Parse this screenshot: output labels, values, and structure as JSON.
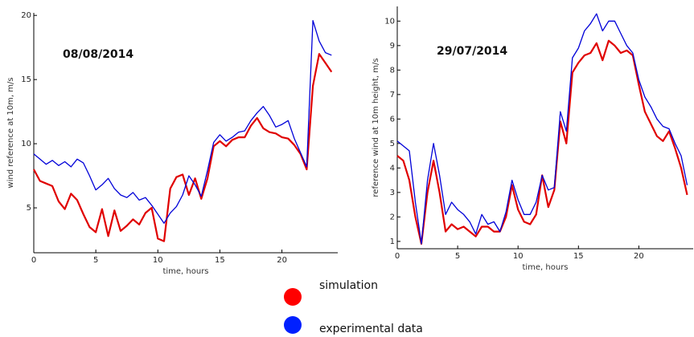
{
  "chart_data": [
    {
      "type": "line",
      "annotation": "08/08/2014",
      "xlabel": "time, hours",
      "ylabel": "wind reference at 10m, m/s",
      "xlim": [
        0,
        24.5
      ],
      "ylim": [
        1.5,
        20.2
      ],
      "xticks": [
        0,
        5,
        10,
        15,
        20
      ],
      "yticks": [
        5,
        10,
        15,
        20
      ],
      "grid": false,
      "series": [
        {
          "name": "simulation",
          "color": "#e00000",
          "x": [
            0,
            0.5,
            1,
            1.5,
            2,
            2.5,
            3,
            3.5,
            4,
            4.5,
            5,
            5.5,
            6,
            6.5,
            7,
            7.5,
            8,
            8.5,
            9,
            9.5,
            10,
            10.5,
            11,
            11.5,
            12,
            12.5,
            13,
            13.5,
            14,
            14.5,
            15,
            15.5,
            16,
            16.5,
            17,
            17.5,
            18,
            18.5,
            19,
            19.5,
            20,
            20.5,
            21,
            21.5,
            22,
            22.5,
            23,
            23.5,
            24
          ],
          "y": [
            8.0,
            7.1,
            6.9,
            6.7,
            5.5,
            4.9,
            6.1,
            5.6,
            4.5,
            3.5,
            3.1,
            4.9,
            2.8,
            4.8,
            3.2,
            3.6,
            4.1,
            3.7,
            4.6,
            5.0,
            2.6,
            2.4,
            6.5,
            7.4,
            7.6,
            6.0,
            7.3,
            5.7,
            7.3,
            9.8,
            10.2,
            9.8,
            10.3,
            10.5,
            10.5,
            11.4,
            12.0,
            11.2,
            10.9,
            10.8,
            10.5,
            10.4,
            9.9,
            9.2,
            8.0,
            14.5,
            17.0,
            16.3,
            15.6
          ]
        },
        {
          "name": "experimental data",
          "color": "#0000d8",
          "x": [
            0,
            0.5,
            1,
            1.5,
            2,
            2.5,
            3,
            3.5,
            4,
            4.5,
            5,
            5.5,
            6,
            6.5,
            7,
            7.5,
            8,
            8.5,
            9,
            9.5,
            10,
            10.5,
            11,
            11.5,
            12,
            12.5,
            13,
            13.5,
            14,
            14.5,
            15,
            15.5,
            16,
            16.5,
            17,
            17.5,
            18,
            18.5,
            19,
            19.5,
            20,
            20.5,
            21,
            21.5,
            22,
            22.5,
            23,
            23.5,
            24
          ],
          "y": [
            9.2,
            8.8,
            8.4,
            8.7,
            8.3,
            8.6,
            8.2,
            8.8,
            8.5,
            7.5,
            6.4,
            6.8,
            7.3,
            6.5,
            6.0,
            5.8,
            6.2,
            5.6,
            5.8,
            5.2,
            4.5,
            3.8,
            4.6,
            5.1,
            6.0,
            7.5,
            6.8,
            5.9,
            7.9,
            10.1,
            10.7,
            10.2,
            10.5,
            10.9,
            11.0,
            11.8,
            12.4,
            12.9,
            12.2,
            11.3,
            11.5,
            11.8,
            10.4,
            9.3,
            8.2,
            19.6,
            18.0,
            17.1,
            16.9
          ]
        }
      ]
    },
    {
      "type": "line",
      "annotation": "29/07/2014",
      "xlabel": "time, hours",
      "ylabel": "reference wind at 10m height, m/s",
      "xlim": [
        0,
        24.5
      ],
      "ylim": [
        0.7,
        10.6
      ],
      "xticks": [
        0,
        5,
        10,
        15,
        20
      ],
      "yticks": [
        1,
        2,
        3,
        4,
        5,
        6,
        7,
        8,
        9,
        10
      ],
      "grid": false,
      "series": [
        {
          "name": "simulation",
          "color": "#e00000",
          "x": [
            0,
            0.5,
            1,
            1.5,
            2,
            2.5,
            3,
            3.5,
            4,
            4.5,
            5,
            5.5,
            6,
            6.5,
            7,
            7.5,
            8,
            8.5,
            9,
            9.5,
            10,
            10.5,
            11,
            11.5,
            12,
            12.5,
            13,
            13.5,
            14,
            14.5,
            15,
            15.5,
            16,
            16.5,
            17,
            17.5,
            18,
            18.5,
            19,
            19.5,
            20,
            20.5,
            21,
            21.5,
            22,
            22.5,
            23,
            23.5,
            24
          ],
          "y": [
            4.5,
            4.3,
            3.5,
            2.0,
            0.9,
            3.0,
            4.3,
            3.0,
            1.4,
            1.7,
            1.5,
            1.6,
            1.4,
            1.2,
            1.6,
            1.6,
            1.4,
            1.4,
            2.0,
            3.3,
            2.3,
            1.8,
            1.7,
            2.1,
            3.7,
            2.4,
            3.1,
            5.9,
            5.0,
            7.9,
            8.3,
            8.6,
            8.7,
            9.1,
            8.4,
            9.2,
            9.0,
            8.7,
            8.8,
            8.6,
            7.4,
            6.3,
            5.8,
            5.3,
            5.1,
            5.5,
            4.8,
            4.0,
            2.9
          ]
        },
        {
          "name": "experimental data",
          "color": "#0000d8",
          "x": [
            0,
            0.5,
            1,
            1.5,
            2,
            2.5,
            3,
            3.5,
            4,
            4.5,
            5,
            5.5,
            6,
            6.5,
            7,
            7.5,
            8,
            8.5,
            9,
            9.5,
            10,
            10.5,
            11,
            11.5,
            12,
            12.5,
            13,
            13.5,
            14,
            14.5,
            15,
            15.5,
            16,
            16.5,
            17,
            17.5,
            18,
            18.5,
            19,
            19.5,
            20,
            20.5,
            21,
            21.5,
            22,
            22.5,
            23,
            23.5,
            24
          ],
          "y": [
            5.1,
            4.9,
            4.7,
            2.6,
            0.9,
            3.5,
            5.0,
            3.7,
            2.1,
            2.6,
            2.3,
            2.1,
            1.8,
            1.3,
            2.1,
            1.7,
            1.8,
            1.4,
            2.2,
            3.5,
            2.7,
            2.1,
            2.1,
            2.6,
            3.7,
            3.1,
            3.2,
            6.3,
            5.5,
            8.5,
            8.9,
            9.6,
            9.9,
            10.3,
            9.6,
            10.0,
            10.0,
            9.5,
            9.0,
            8.7,
            7.6,
            6.9,
            6.5,
            6.0,
            5.7,
            5.6,
            5.0,
            4.5,
            3.3
          ]
        }
      ]
    }
  ],
  "legend": [
    {
      "label": "simulation",
      "color": "#ff0000"
    },
    {
      "label": "experimental data",
      "color": "#0020ff"
    }
  ]
}
